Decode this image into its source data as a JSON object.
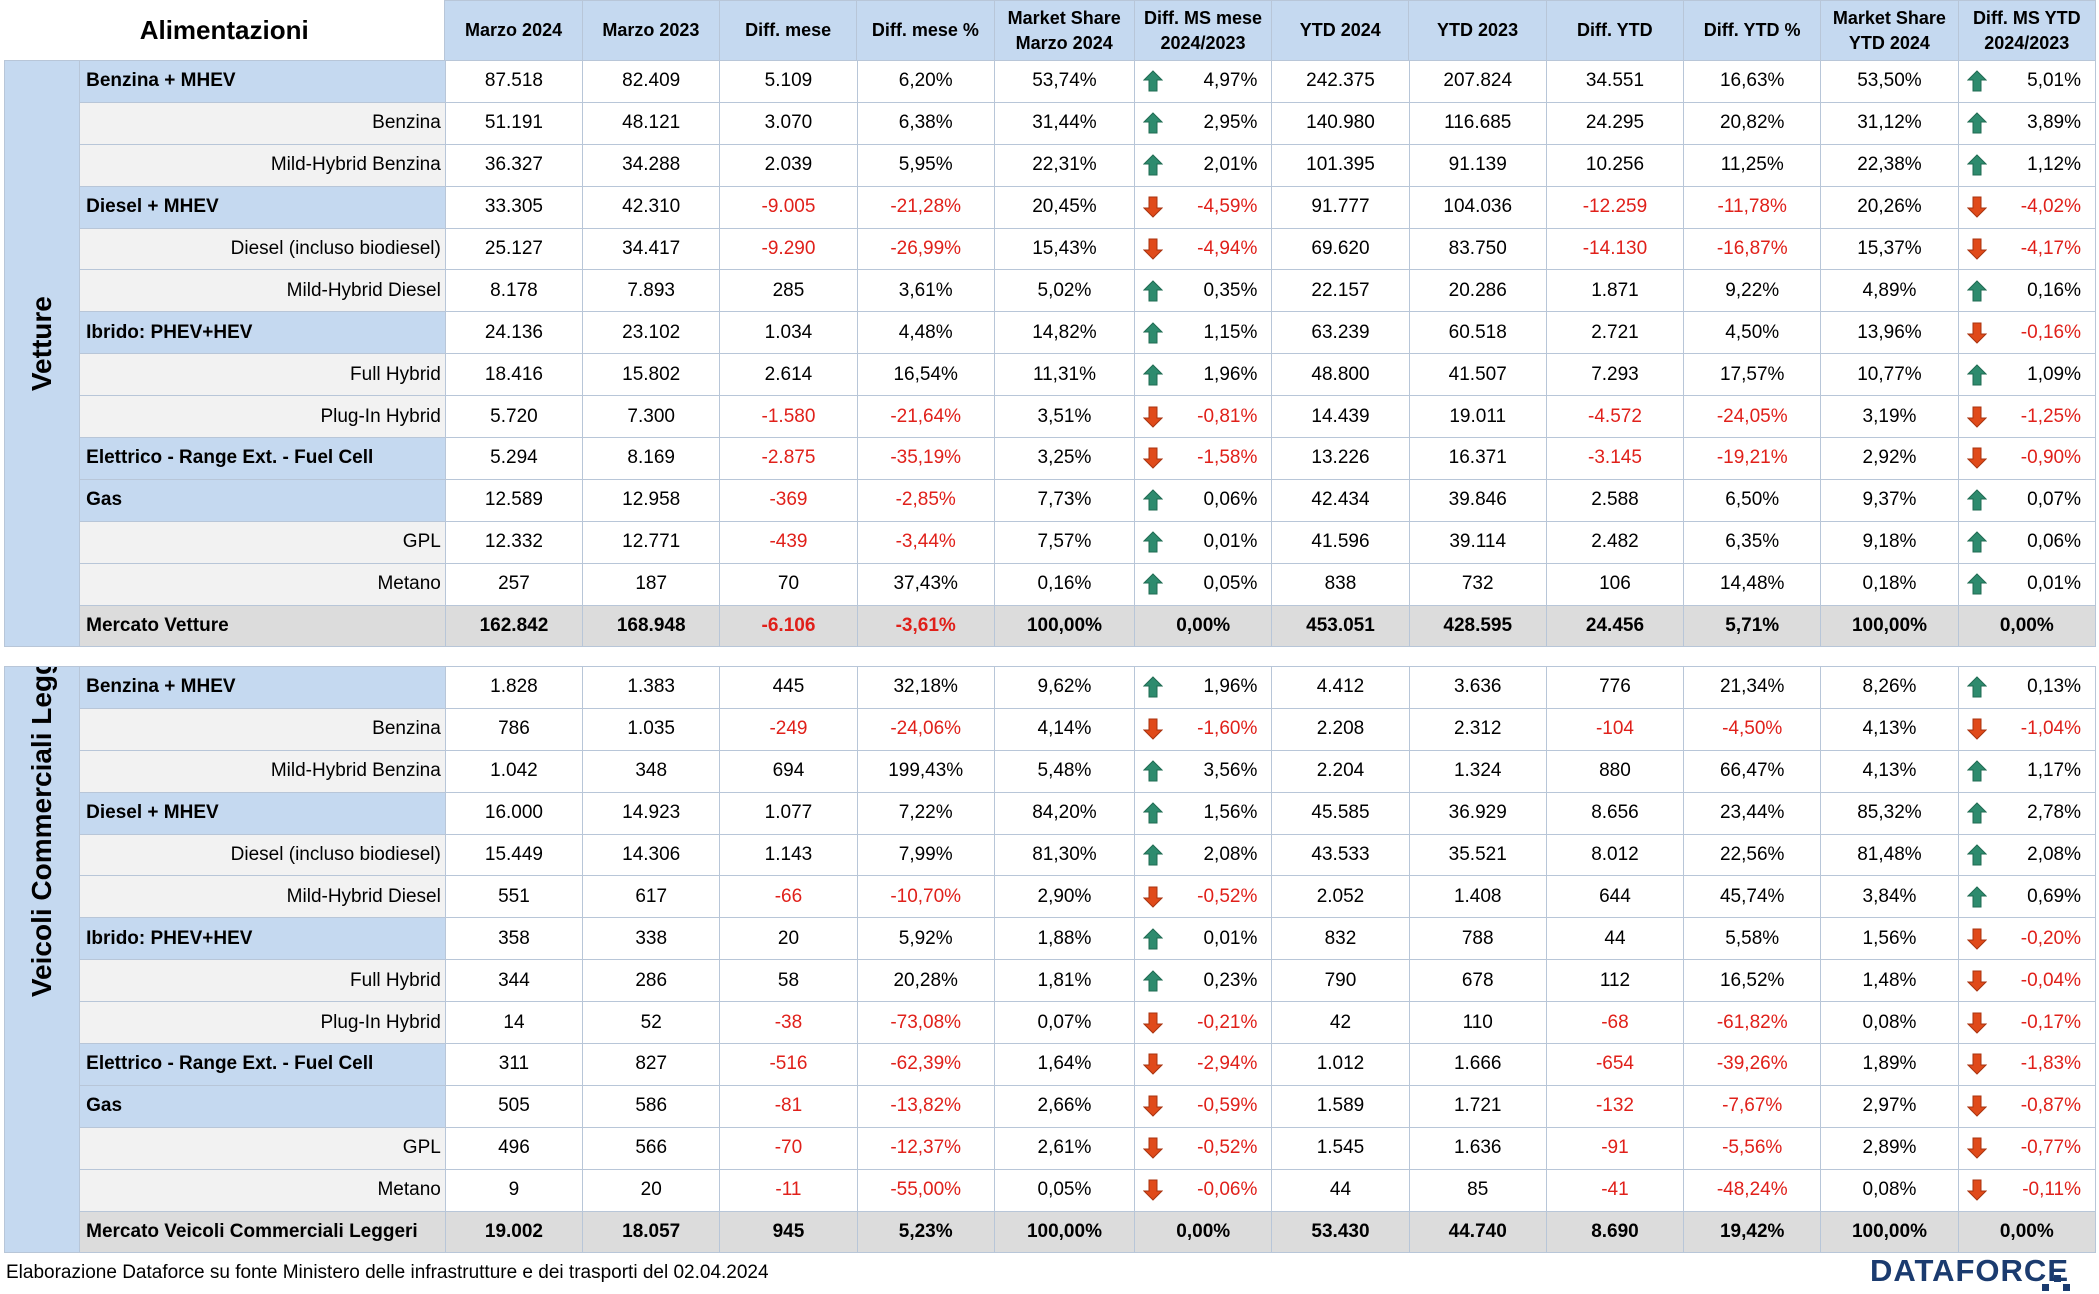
{
  "header": {
    "col0": "Alimentazioni",
    "cols": [
      {
        "l1": "Marzo 2024",
        "l2": ""
      },
      {
        "l1": "Marzo 2023",
        "l2": ""
      },
      {
        "l1": "Diff. mese",
        "l2": ""
      },
      {
        "l1": "Diff. mese %",
        "l2": ""
      },
      {
        "l1": "Market Share",
        "l2": "Marzo 2024"
      },
      {
        "l1": "Diff. MS mese",
        "l2": "2024/2023"
      },
      {
        "l1": "YTD 2024",
        "l2": ""
      },
      {
        "l1": "YTD 2023",
        "l2": ""
      },
      {
        "l1": "Diff. YTD",
        "l2": ""
      },
      {
        "l1": "Diff. YTD %",
        "l2": ""
      },
      {
        "l1": "Market Share",
        "l2": "YTD 2024"
      },
      {
        "l1": "Diff. MS YTD",
        "l2": "2024/2023"
      }
    ]
  },
  "sections": [
    {
      "label": "Vetture",
      "rows": [
        {
          "name": "Benzina + MHEV",
          "kind": "group",
          "v": [
            "87.518",
            "82.409",
            "5.109",
            "6,20%",
            "53,74%",
            "4,97%",
            "242.375",
            "207.824",
            "34.551",
            "16,63%",
            "53,50%",
            "5,01%"
          ],
          "ms_m": "up",
          "ms_y": "up"
        },
        {
          "name": "Benzina",
          "kind": "sub",
          "v": [
            "51.191",
            "48.121",
            "3.070",
            "6,38%",
            "31,44%",
            "2,95%",
            "140.980",
            "116.685",
            "24.295",
            "20,82%",
            "31,12%",
            "3,89%"
          ],
          "ms_m": "up",
          "ms_y": "up"
        },
        {
          "name": "Mild-Hybrid Benzina",
          "kind": "sub",
          "v": [
            "36.327",
            "34.288",
            "2.039",
            "5,95%",
            "22,31%",
            "2,01%",
            "101.395",
            "91.139",
            "10.256",
            "11,25%",
            "22,38%",
            "1,12%"
          ],
          "ms_m": "up",
          "ms_y": "up"
        },
        {
          "name": "Diesel + MHEV",
          "kind": "group",
          "v": [
            "33.305",
            "42.310",
            "-9.005",
            "-21,28%",
            "20,45%",
            "-4,59%",
            "91.777",
            "104.036",
            "-12.259",
            "-11,78%",
            "20,26%",
            "-4,02%"
          ],
          "ms_m": "down",
          "ms_y": "down"
        },
        {
          "name": "Diesel (incluso biodiesel)",
          "kind": "sub",
          "v": [
            "25.127",
            "34.417",
            "-9.290",
            "-26,99%",
            "15,43%",
            "-4,94%",
            "69.620",
            "83.750",
            "-14.130",
            "-16,87%",
            "15,37%",
            "-4,17%"
          ],
          "ms_m": "down",
          "ms_y": "down"
        },
        {
          "name": "Mild-Hybrid Diesel",
          "kind": "sub",
          "v": [
            "8.178",
            "7.893",
            "285",
            "3,61%",
            "5,02%",
            "0,35%",
            "22.157",
            "20.286",
            "1.871",
            "9,22%",
            "4,89%",
            "0,16%"
          ],
          "ms_m": "up",
          "ms_y": "up"
        },
        {
          "name": "Ibrido: PHEV+HEV",
          "kind": "group",
          "v": [
            "24.136",
            "23.102",
            "1.034",
            "4,48%",
            "14,82%",
            "1,15%",
            "63.239",
            "60.518",
            "2.721",
            "4,50%",
            "13,96%",
            "-0,16%"
          ],
          "ms_m": "up",
          "ms_y": "down"
        },
        {
          "name": "Full Hybrid",
          "kind": "sub",
          "v": [
            "18.416",
            "15.802",
            "2.614",
            "16,54%",
            "11,31%",
            "1,96%",
            "48.800",
            "41.507",
            "7.293",
            "17,57%",
            "10,77%",
            "1,09%"
          ],
          "ms_m": "up",
          "ms_y": "up"
        },
        {
          "name": "Plug-In Hybrid",
          "kind": "sub",
          "v": [
            "5.720",
            "7.300",
            "-1.580",
            "-21,64%",
            "3,51%",
            "-0,81%",
            "14.439",
            "19.011",
            "-4.572",
            "-24,05%",
            "3,19%",
            "-1,25%"
          ],
          "ms_m": "down",
          "ms_y": "down"
        },
        {
          "name": "Elettrico - Range Ext. - Fuel Cell",
          "kind": "group",
          "v": [
            "5.294",
            "8.169",
            "-2.875",
            "-35,19%",
            "3,25%",
            "-1,58%",
            "13.226",
            "16.371",
            "-3.145",
            "-19,21%",
            "2,92%",
            "-0,90%"
          ],
          "ms_m": "down",
          "ms_y": "down"
        },
        {
          "name": "Gas",
          "kind": "group",
          "v": [
            "12.589",
            "12.958",
            "-369",
            "-2,85%",
            "7,73%",
            "0,06%",
            "42.434",
            "39.846",
            "2.588",
            "6,50%",
            "9,37%",
            "0,07%"
          ],
          "ms_m": "up",
          "ms_y": "up"
        },
        {
          "name": "GPL",
          "kind": "sub",
          "v": [
            "12.332",
            "12.771",
            "-439",
            "-3,44%",
            "7,57%",
            "0,01%",
            "41.596",
            "39.114",
            "2.482",
            "6,35%",
            "9,18%",
            "0,06%"
          ],
          "ms_m": "up",
          "ms_y": "up"
        },
        {
          "name": "Metano",
          "kind": "sub",
          "v": [
            "257",
            "187",
            "70",
            "37,43%",
            "0,16%",
            "0,05%",
            "838",
            "732",
            "106",
            "14,48%",
            "0,18%",
            "0,01%"
          ],
          "ms_m": "up",
          "ms_y": "up"
        },
        {
          "name": "Mercato Vetture",
          "kind": "total",
          "v": [
            "162.842",
            "168.948",
            "-6.106",
            "-3,61%",
            "100,00%",
            "0,00%",
            "453.051",
            "428.595",
            "24.456",
            "5,71%",
            "100,00%",
            "0,00%"
          ],
          "ms_m": "none",
          "ms_y": "none"
        }
      ]
    },
    {
      "label": "Veicoli Commerciali Leggeri",
      "rows": [
        {
          "name": "Benzina + MHEV",
          "kind": "group",
          "v": [
            "1.828",
            "1.383",
            "445",
            "32,18%",
            "9,62%",
            "1,96%",
            "4.412",
            "3.636",
            "776",
            "21,34%",
            "8,26%",
            "0,13%"
          ],
          "ms_m": "up",
          "ms_y": "up"
        },
        {
          "name": "Benzina",
          "kind": "sub",
          "v": [
            "786",
            "1.035",
            "-249",
            "-24,06%",
            "4,14%",
            "-1,60%",
            "2.208",
            "2.312",
            "-104",
            "-4,50%",
            "4,13%",
            "-1,04%"
          ],
          "ms_m": "down",
          "ms_y": "down"
        },
        {
          "name": "Mild-Hybrid Benzina",
          "kind": "sub",
          "v": [
            "1.042",
            "348",
            "694",
            "199,43%",
            "5,48%",
            "3,56%",
            "2.204",
            "1.324",
            "880",
            "66,47%",
            "4,13%",
            "1,17%"
          ],
          "ms_m": "up",
          "ms_y": "up"
        },
        {
          "name": "Diesel + MHEV",
          "kind": "group",
          "v": [
            "16.000",
            "14.923",
            "1.077",
            "7,22%",
            "84,20%",
            "1,56%",
            "45.585",
            "36.929",
            "8.656",
            "23,44%",
            "85,32%",
            "2,78%"
          ],
          "ms_m": "up",
          "ms_y": "up"
        },
        {
          "name": "Diesel (incluso biodiesel)",
          "kind": "sub",
          "v": [
            "15.449",
            "14.306",
            "1.143",
            "7,99%",
            "81,30%",
            "2,08%",
            "43.533",
            "35.521",
            "8.012",
            "22,56%",
            "81,48%",
            "2,08%"
          ],
          "ms_m": "up",
          "ms_y": "up"
        },
        {
          "name": "Mild-Hybrid Diesel",
          "kind": "sub",
          "v": [
            "551",
            "617",
            "-66",
            "-10,70%",
            "2,90%",
            "-0,52%",
            "2.052",
            "1.408",
            "644",
            "45,74%",
            "3,84%",
            "0,69%"
          ],
          "ms_m": "down",
          "ms_y": "up"
        },
        {
          "name": "Ibrido: PHEV+HEV",
          "kind": "group",
          "v": [
            "358",
            "338",
            "20",
            "5,92%",
            "1,88%",
            "0,01%",
            "832",
            "788",
            "44",
            "5,58%",
            "1,56%",
            "-0,20%"
          ],
          "ms_m": "up",
          "ms_y": "down"
        },
        {
          "name": "Full Hybrid",
          "kind": "sub",
          "v": [
            "344",
            "286",
            "58",
            "20,28%",
            "1,81%",
            "0,23%",
            "790",
            "678",
            "112",
            "16,52%",
            "1,48%",
            "-0,04%"
          ],
          "ms_m": "up",
          "ms_y": "down"
        },
        {
          "name": "Plug-In Hybrid",
          "kind": "sub",
          "v": [
            "14",
            "52",
            "-38",
            "-73,08%",
            "0,07%",
            "-0,21%",
            "42",
            "110",
            "-68",
            "-61,82%",
            "0,08%",
            "-0,17%"
          ],
          "ms_m": "down",
          "ms_y": "down"
        },
        {
          "name": "Elettrico - Range Ext. - Fuel Cell",
          "kind": "group",
          "v": [
            "311",
            "827",
            "-516",
            "-62,39%",
            "1,64%",
            "-2,94%",
            "1.012",
            "1.666",
            "-654",
            "-39,26%",
            "1,89%",
            "-1,83%"
          ],
          "ms_m": "down",
          "ms_y": "down"
        },
        {
          "name": "Gas",
          "kind": "group",
          "v": [
            "505",
            "586",
            "-81",
            "-13,82%",
            "2,66%",
            "-0,59%",
            "1.589",
            "1.721",
            "-132",
            "-7,67%",
            "2,97%",
            "-0,87%"
          ],
          "ms_m": "down",
          "ms_y": "down"
        },
        {
          "name": "GPL",
          "kind": "sub",
          "v": [
            "496",
            "566",
            "-70",
            "-12,37%",
            "2,61%",
            "-0,52%",
            "1.545",
            "1.636",
            "-91",
            "-5,56%",
            "2,89%",
            "-0,77%"
          ],
          "ms_m": "down",
          "ms_y": "down"
        },
        {
          "name": "Metano",
          "kind": "sub",
          "v": [
            "9",
            "20",
            "-11",
            "-55,00%",
            "0,05%",
            "-0,06%",
            "44",
            "85",
            "-41",
            "-48,24%",
            "0,08%",
            "-0,11%"
          ],
          "ms_m": "down",
          "ms_y": "down"
        },
        {
          "name": "Mercato Veicoli Commerciali Leggeri",
          "kind": "total",
          "v": [
            "19.002",
            "18.057",
            "945",
            "5,23%",
            "100,00%",
            "0,00%",
            "53.430",
            "44.740",
            "8.690",
            "19,42%",
            "100,00%",
            "0,00%"
          ],
          "ms_m": "none",
          "ms_y": "none"
        }
      ]
    }
  ],
  "colors": {
    "header_bg": "#c5d9f0",
    "negative": "#e0201a",
    "arrow_up": "#2e8b6e",
    "arrow_down": "#e04a1a",
    "total_bg": "#dcdcdc"
  },
  "footer": {
    "note": "Elaborazione Dataforce su fonte Ministero delle infrastrutture e dei trasporti del 02.04.2024"
  },
  "logo": {
    "text": "DATAFORCE"
  }
}
